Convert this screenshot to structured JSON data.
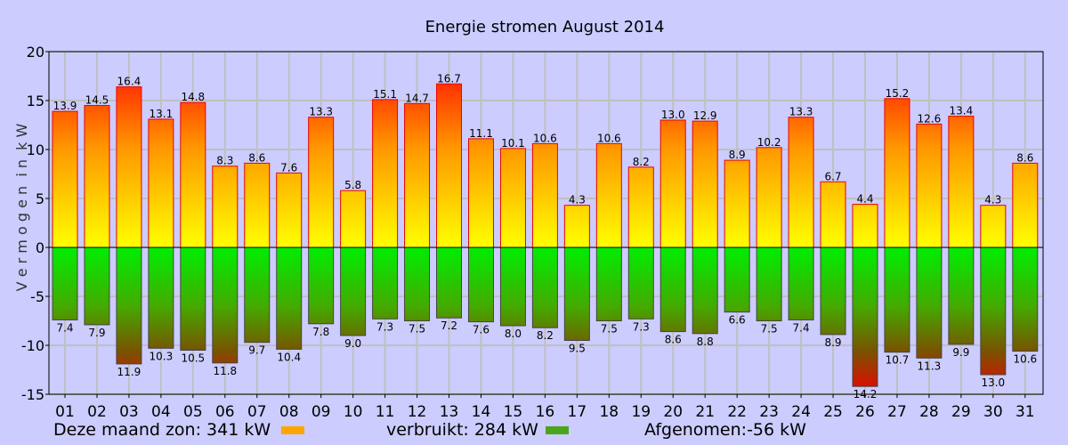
{
  "chart_data": {
    "type": "bar",
    "title": "Energie stromen August 2014",
    "ylabel": "V e r m o g e n  i n  k W",
    "ylim": [
      -15,
      20
    ],
    "yticks": [
      20,
      15,
      10,
      5,
      0,
      -5,
      -10,
      -15
    ],
    "grid": true,
    "categories": [
      "01",
      "02",
      "03",
      "04",
      "05",
      "06",
      "07",
      "08",
      "09",
      "10",
      "11",
      "12",
      "13",
      "14",
      "15",
      "16",
      "17",
      "18",
      "19",
      "20",
      "21",
      "22",
      "23",
      "24",
      "25",
      "26",
      "27",
      "28",
      "29",
      "30",
      "31"
    ],
    "series": [
      {
        "values": [
          13.9,
          14.5,
          16.4,
          13.1,
          14.8,
          8.3,
          8.6,
          7.6,
          13.3,
          5.8,
          15.1,
          14.7,
          16.7,
          11.1,
          10.1,
          10.6,
          4.3,
          10.6,
          8.2,
          13.0,
          12.9,
          8.9,
          10.2,
          13.3,
          6.7,
          4.4,
          15.2,
          12.6,
          13.4,
          4.3,
          8.6
        ]
      },
      {
        "values": [
          -7.4,
          -7.9,
          -11.9,
          -10.3,
          -10.5,
          -11.8,
          -9.7,
          -10.4,
          -7.8,
          -9.0,
          -7.3,
          -7.5,
          -7.2,
          -7.6,
          -8.0,
          -8.2,
          -9.5,
          -7.5,
          -7.3,
          -8.6,
          -8.8,
          -6.6,
          -7.5,
          -7.4,
          -8.9,
          -14.2,
          -10.7,
          -11.3,
          -9.9,
          -13.0,
          -10.6
        ]
      }
    ]
  },
  "footer": {
    "sun_text": "Deze maand zon: 341  kW",
    "used_text": "verbruikt: 284 kW",
    "taken_text": "Afgenomen:-56 kW",
    "sun_color": "#ffa500",
    "used_color": "#4aa51a"
  }
}
